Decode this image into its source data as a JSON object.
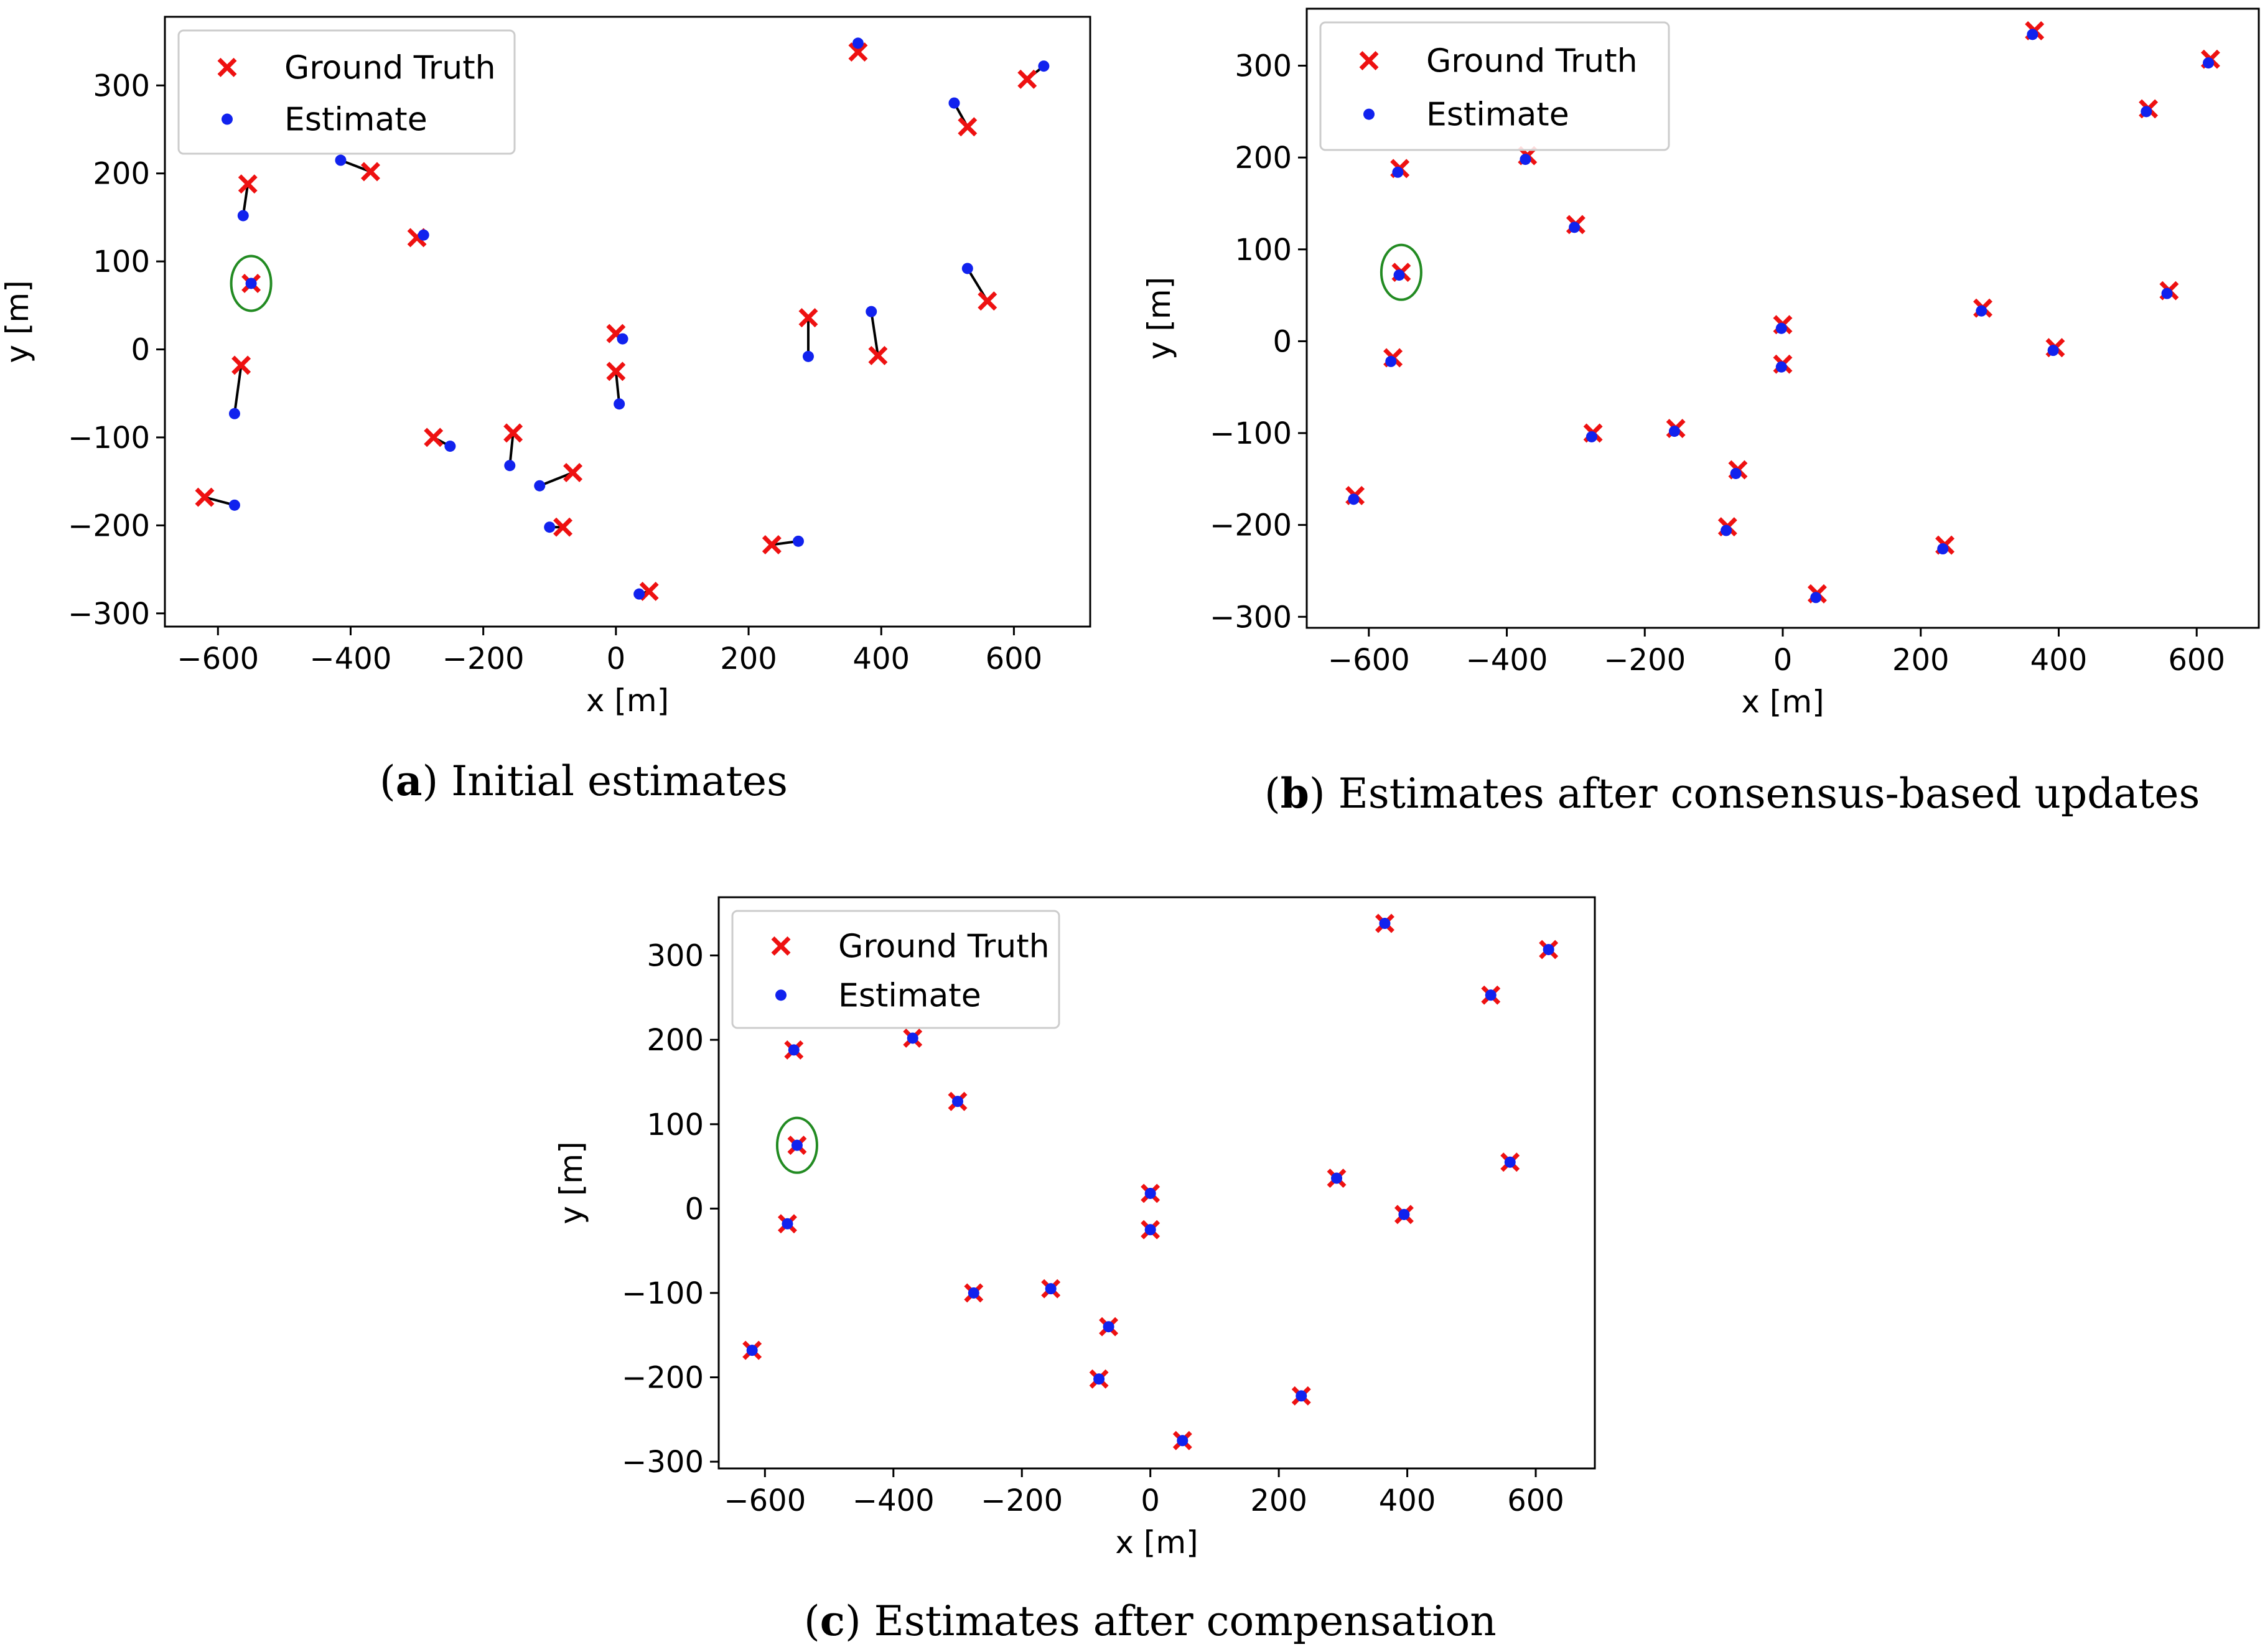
{
  "colors": {
    "ground_truth": "#ee1111",
    "estimate": "#1122ee",
    "highlight": "#228b22",
    "link": "#000000"
  },
  "chart_data": [
    {
      "type": "scatter",
      "id": "a",
      "caption_letter": "a",
      "caption_text": ") Initial estimates",
      "caption_open": "(",
      "xlabel": "x [m]",
      "ylabel": "y [m]",
      "xlim": [
        -680,
        715
      ],
      "ylim": [
        -315,
        378
      ],
      "xticks": [
        -600,
        -400,
        -200,
        0,
        200,
        400,
        600
      ],
      "yticks": [
        -300,
        -200,
        -100,
        0,
        100,
        200,
        300
      ],
      "xtick_labels": [
        "−600",
        "−400",
        "−200",
        "0",
        "200",
        "400",
        "600"
      ],
      "ytick_labels": [
        "−300",
        "−200",
        "−100",
        "0",
        "100",
        "200",
        "300"
      ],
      "legend": [
        "Ground Truth",
        "Estimate"
      ],
      "legend_loc": "upper-left",
      "highlight": [
        -550,
        75
      ],
      "ground_truth": [
        [
          -620,
          -168
        ],
        [
          -565,
          -18
        ],
        [
          -555,
          188
        ],
        [
          -550,
          75
        ],
        [
          -370,
          202
        ],
        [
          -300,
          127
        ],
        [
          -275,
          -100
        ],
        [
          -155,
          -95
        ],
        [
          -80,
          -202
        ],
        [
          -65,
          -140
        ],
        [
          0,
          -25
        ],
        [
          0,
          18
        ],
        [
          50,
          -275
        ],
        [
          235,
          -222
        ],
        [
          290,
          36
        ],
        [
          365,
          338
        ],
        [
          395,
          -7
        ],
        [
          530,
          253
        ],
        [
          560,
          55
        ],
        [
          620,
          307
        ]
      ],
      "estimates": [
        [
          -575,
          -177
        ],
        [
          -575,
          -73
        ],
        [
          -562,
          152
        ],
        [
          -550,
          75
        ],
        [
          -415,
          215
        ],
        [
          -290,
          130
        ],
        [
          -250,
          -110
        ],
        [
          -160,
          -132
        ],
        [
          -100,
          -202
        ],
        [
          -115,
          -155
        ],
        [
          5,
          -62
        ],
        [
          10,
          12
        ],
        [
          35,
          -278
        ],
        [
          275,
          -218
        ],
        [
          290,
          -8
        ],
        [
          365,
          348
        ],
        [
          385,
          43
        ],
        [
          510,
          280
        ],
        [
          530,
          92
        ],
        [
          645,
          322
        ]
      ]
    },
    {
      "type": "scatter",
      "id": "b",
      "caption_letter": "b",
      "caption_text": ") Estimates after consensus-based updates",
      "caption_open": "(",
      "xlabel": "x [m]",
      "ylabel": "y [m]",
      "xlim": [
        -690,
        690
      ],
      "ylim": [
        -312,
        362
      ],
      "xticks": [
        -600,
        -400,
        -200,
        0,
        200,
        400,
        600
      ],
      "yticks": [
        -300,
        -200,
        -100,
        0,
        100,
        200,
        300
      ],
      "xtick_labels": [
        "−600",
        "−400",
        "−200",
        "0",
        "200",
        "400",
        "600"
      ],
      "ytick_labels": [
        "−300",
        "−200",
        "−100",
        "0",
        "100",
        "200",
        "300"
      ],
      "legend": [
        "Ground Truth",
        "Estimate"
      ],
      "legend_loc": "upper-left",
      "highlight": [
        -553,
        75
      ],
      "ground_truth": [
        [
          -620,
          -168
        ],
        [
          -565,
          -18
        ],
        [
          -555,
          188
        ],
        [
          -553,
          75
        ],
        [
          -370,
          202
        ],
        [
          -300,
          127
        ],
        [
          -275,
          -100
        ],
        [
          -155,
          -95
        ],
        [
          -80,
          -202
        ],
        [
          -65,
          -140
        ],
        [
          0,
          -25
        ],
        [
          0,
          18
        ],
        [
          50,
          -275
        ],
        [
          235,
          -222
        ],
        [
          290,
          36
        ],
        [
          365,
          338
        ],
        [
          395,
          -7
        ],
        [
          530,
          253
        ],
        [
          560,
          55
        ],
        [
          620,
          307
        ]
      ],
      "estimates": [
        [
          -622,
          -172
        ],
        [
          -568,
          -22
        ],
        [
          -558,
          184
        ],
        [
          -556,
          72
        ],
        [
          -373,
          198
        ],
        [
          -302,
          124
        ],
        [
          -277,
          -104
        ],
        [
          -157,
          -98
        ],
        [
          -82,
          -206
        ],
        [
          -68,
          -144
        ],
        [
          -2,
          -28
        ],
        [
          -2,
          14
        ],
        [
          48,
          -279
        ],
        [
          232,
          -226
        ],
        [
          288,
          33
        ],
        [
          362,
          334
        ],
        [
          392,
          -10
        ],
        [
          527,
          250
        ],
        [
          557,
          52
        ],
        [
          617,
          303
        ]
      ]
    },
    {
      "type": "scatter",
      "id": "c",
      "caption_letter": "c",
      "caption_text": ") Estimates after compensation",
      "caption_open": "(",
      "xlabel": "x [m]",
      "ylabel": "y [m]",
      "xlim": [
        -672,
        692
      ],
      "ylim": [
        -308,
        369
      ],
      "xticks": [
        -600,
        -400,
        -200,
        0,
        200,
        400,
        600
      ],
      "yticks": [
        -300,
        -200,
        -100,
        0,
        100,
        200,
        300
      ],
      "xtick_labels": [
        "−600",
        "−400",
        "−200",
        "0",
        "200",
        "400",
        "600"
      ],
      "ytick_labels": [
        "−300",
        "−200",
        "−100",
        "0",
        "100",
        "200",
        "300"
      ],
      "legend": [
        "Ground Truth",
        "Estimate"
      ],
      "legend_loc": "upper-left",
      "highlight": [
        -550,
        75
      ],
      "ground_truth": [
        [
          -620,
          -168
        ],
        [
          -565,
          -18
        ],
        [
          -555,
          188
        ],
        [
          -550,
          75
        ],
        [
          -370,
          202
        ],
        [
          -300,
          127
        ],
        [
          -275,
          -100
        ],
        [
          -155,
          -95
        ],
        [
          -80,
          -202
        ],
        [
          -65,
          -140
        ],
        [
          0,
          -25
        ],
        [
          0,
          18
        ],
        [
          50,
          -275
        ],
        [
          235,
          -222
        ],
        [
          290,
          36
        ],
        [
          365,
          338
        ],
        [
          395,
          -7
        ],
        [
          530,
          253
        ],
        [
          560,
          55
        ],
        [
          620,
          307
        ]
      ],
      "estimates": [
        [
          -620,
          -168
        ],
        [
          -565,
          -18
        ],
        [
          -555,
          188
        ],
        [
          -550,
          75
        ],
        [
          -370,
          202
        ],
        [
          -300,
          127
        ],
        [
          -275,
          -100
        ],
        [
          -155,
          -95
        ],
        [
          -80,
          -202
        ],
        [
          -65,
          -140
        ],
        [
          0,
          -25
        ],
        [
          0,
          18
        ],
        [
          50,
          -275
        ],
        [
          235,
          -222
        ],
        [
          290,
          36
        ],
        [
          365,
          338
        ],
        [
          395,
          -7
        ],
        [
          530,
          253
        ],
        [
          560,
          55
        ],
        [
          620,
          307
        ]
      ]
    }
  ]
}
